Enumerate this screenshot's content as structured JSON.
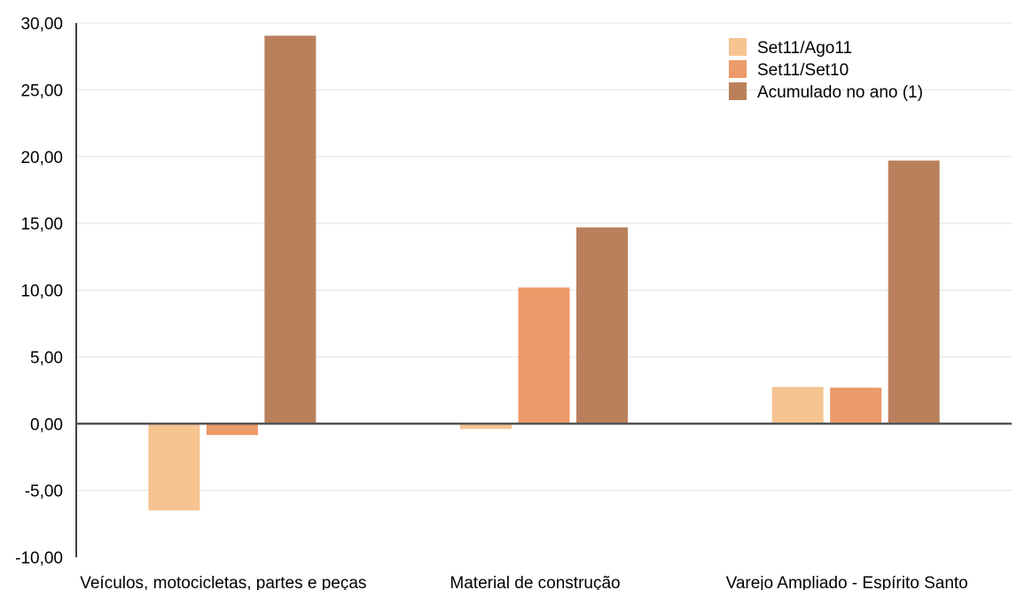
{
  "chart_data": {
    "type": "bar",
    "categories": [
      "Veículos, motocicletas, partes e peças",
      "Material de construção",
      "Varejo Ampliado - Espírito Santo"
    ],
    "series": [
      {
        "name": "Set11/Ago11",
        "values": [
          -6.5,
          -0.4,
          2.75
        ],
        "color": "#F5C491"
      },
      {
        "name": "Set11/Set10",
        "values": [
          -0.85,
          10.2,
          2.7
        ],
        "color": "#EC9A69"
      },
      {
        "name": "Acumulado no ano (1)",
        "values": [
          29.05,
          14.7,
          19.7
        ],
        "color": "#B9805B"
      }
    ],
    "yticks": [
      "30,00",
      "25,00",
      "20,00",
      "15,00",
      "10,00",
      "5,00",
      "0,00",
      "-5,00",
      "-10,00"
    ],
    "ylim": [
      -10,
      30
    ],
    "grid": true,
    "legend_position": "top-right"
  }
}
